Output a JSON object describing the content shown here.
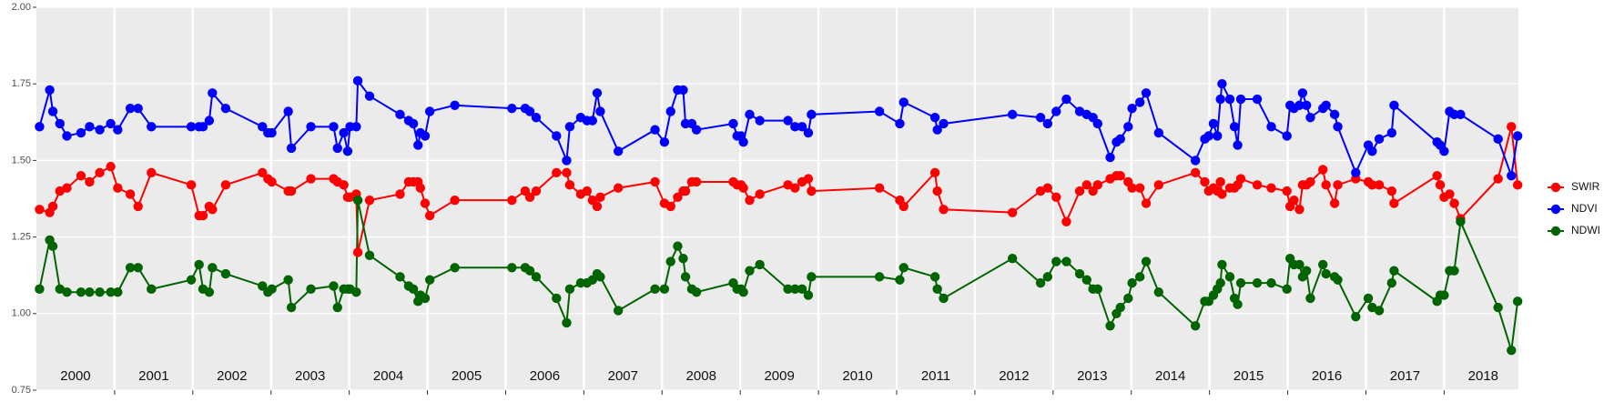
{
  "chart_data": {
    "type": "line",
    "x": [
      2000.04,
      2000.17,
      2000.21,
      2000.3,
      2000.39,
      2000.57,
      2000.68,
      2000.81,
      2000.95,
      2001.04,
      2001.2,
      2001.3,
      2001.47,
      2001.98,
      2002.08,
      2002.13,
      2002.21,
      2002.25,
      2002.42,
      2002.89,
      2002.96,
      2003.01,
      2003.22,
      2003.26,
      2003.51,
      2003.8,
      2003.85,
      2003.93,
      2003.98,
      2004.01,
      2004.09,
      2004.11,
      2004.26,
      2004.65,
      2004.76,
      2004.82,
      2004.88,
      2004.91,
      2004.97,
      2005.03,
      2005.35,
      2006.08,
      2006.25,
      2006.31,
      2006.39,
      2006.65,
      2006.78,
      2006.82,
      2006.96,
      2007.04,
      2007.11,
      2007.17,
      2007.21,
      2007.44,
      2007.91,
      2008.03,
      2008.11,
      2008.2,
      2008.27,
      2008.3,
      2008.38,
      2008.44,
      2008.91,
      2008.96,
      2009.01,
      2009.04,
      2009.12,
      2009.25,
      2009.61,
      2009.7,
      2009.79,
      2009.87,
      2009.91,
      2010.78,
      2011.04,
      2011.09,
      2011.49,
      2011.52,
      2011.6,
      2012.48,
      2012.84,
      2012.93,
      2013.04,
      2013.17,
      2013.34,
      2013.43,
      2013.51,
      2013.57,
      2013.73,
      2013.81,
      2013.86,
      2013.96,
      2014.01,
      2014.11,
      2014.19,
      2014.35,
      2014.82,
      2014.94,
      2014.99,
      2015.05,
      2015.1,
      2015.14,
      2015.16,
      2015.26,
      2015.32,
      2015.36,
      2015.4,
      2015.61,
      2015.79,
      2015.99,
      2016.03,
      2016.08,
      2016.15,
      2016.19,
      2016.24,
      2016.29,
      2016.45,
      2016.49,
      2016.6,
      2016.64,
      2016.87,
      2017.03,
      2017.08,
      2017.17,
      2017.33,
      2017.36,
      2017.91,
      2017.95,
      2018.0,
      2018.07,
      2018.13,
      2018.21,
      2018.69,
      2018.86,
      2018.94
    ],
    "series": [
      {
        "name": "SWIR",
        "color": "#ff0000",
        "values": [
          1.34,
          1.33,
          1.35,
          1.4,
          1.41,
          1.45,
          1.43,
          1.46,
          1.48,
          1.41,
          1.39,
          1.35,
          1.46,
          1.42,
          1.32,
          1.32,
          1.35,
          1.34,
          1.42,
          1.46,
          1.44,
          1.43,
          1.4,
          1.4,
          1.44,
          1.44,
          1.43,
          1.42,
          1.38,
          1.38,
          1.39,
          1.2,
          1.37,
          1.39,
          1.43,
          1.43,
          1.43,
          1.41,
          1.36,
          1.32,
          1.37,
          1.37,
          1.4,
          1.38,
          1.4,
          1.46,
          1.46,
          1.42,
          1.39,
          1.4,
          1.37,
          1.35,
          1.38,
          1.41,
          1.43,
          1.36,
          1.35,
          1.38,
          1.4,
          1.4,
          1.43,
          1.43,
          1.43,
          1.42,
          1.42,
          1.41,
          1.37,
          1.39,
          1.42,
          1.41,
          1.43,
          1.44,
          1.4,
          1.41,
          1.37,
          1.35,
          1.46,
          1.4,
          1.34,
          1.33,
          1.4,
          1.41,
          1.38,
          1.3,
          1.4,
          1.42,
          1.4,
          1.42,
          1.44,
          1.45,
          1.45,
          1.43,
          1.41,
          1.41,
          1.36,
          1.42,
          1.46,
          1.43,
          1.4,
          1.41,
          1.4,
          1.43,
          1.39,
          1.41,
          1.41,
          1.42,
          1.44,
          1.42,
          1.41,
          1.4,
          1.35,
          1.37,
          1.34,
          1.42,
          1.42,
          1.43,
          1.47,
          1.42,
          1.36,
          1.42,
          1.44,
          1.43,
          1.42,
          1.42,
          1.4,
          1.36,
          1.45,
          1.42,
          1.38,
          1.39,
          1.36,
          1.31,
          1.44,
          1.61,
          1.42
        ]
      },
      {
        "name": "NDVI",
        "color": "#0000ff",
        "values": [
          1.61,
          1.73,
          1.66,
          1.62,
          1.58,
          1.59,
          1.61,
          1.6,
          1.62,
          1.6,
          1.67,
          1.67,
          1.61,
          1.61,
          1.61,
          1.61,
          1.63,
          1.72,
          1.67,
          1.61,
          1.59,
          1.59,
          1.66,
          1.54,
          1.61,
          1.61,
          1.54,
          1.59,
          1.53,
          1.61,
          1.61,
          1.76,
          1.71,
          1.65,
          1.63,
          1.62,
          1.55,
          1.59,
          1.58,
          1.66,
          1.68,
          1.67,
          1.67,
          1.66,
          1.64,
          1.58,
          1.5,
          1.61,
          1.64,
          1.63,
          1.63,
          1.72,
          1.66,
          1.53,
          1.6,
          1.56,
          1.66,
          1.73,
          1.73,
          1.62,
          1.62,
          1.6,
          1.62,
          1.58,
          1.58,
          1.56,
          1.65,
          1.63,
          1.63,
          1.61,
          1.61,
          1.59,
          1.65,
          1.66,
          1.62,
          1.69,
          1.64,
          1.6,
          1.62,
          1.65,
          1.64,
          1.62,
          1.66,
          1.7,
          1.66,
          1.65,
          1.64,
          1.62,
          1.51,
          1.56,
          1.57,
          1.61,
          1.67,
          1.69,
          1.72,
          1.59,
          1.5,
          1.57,
          1.58,
          1.62,
          1.58,
          1.7,
          1.75,
          1.7,
          1.61,
          1.55,
          1.7,
          1.7,
          1.61,
          1.58,
          1.68,
          1.67,
          1.68,
          1.72,
          1.68,
          1.64,
          1.67,
          1.68,
          1.65,
          1.61,
          1.46,
          1.55,
          1.53,
          1.57,
          1.59,
          1.68,
          1.56,
          1.55,
          1.53,
          1.66,
          1.65,
          1.65,
          1.57,
          1.45,
          1.58
        ]
      },
      {
        "name": "NDWI",
        "color": "#006400",
        "values": [
          1.08,
          1.24,
          1.22,
          1.08,
          1.07,
          1.07,
          1.07,
          1.07,
          1.07,
          1.07,
          1.15,
          1.15,
          1.08,
          1.11,
          1.16,
          1.08,
          1.07,
          1.15,
          1.13,
          1.09,
          1.07,
          1.08,
          1.11,
          1.02,
          1.08,
          1.09,
          1.02,
          1.08,
          1.08,
          1.08,
          1.07,
          1.37,
          1.19,
          1.12,
          1.09,
          1.08,
          1.04,
          1.06,
          1.05,
          1.11,
          1.15,
          1.15,
          1.15,
          1.14,
          1.12,
          1.05,
          0.97,
          1.08,
          1.1,
          1.1,
          1.11,
          1.13,
          1.12,
          1.01,
          1.08,
          1.08,
          1.17,
          1.22,
          1.18,
          1.12,
          1.08,
          1.07,
          1.1,
          1.08,
          1.08,
          1.07,
          1.14,
          1.16,
          1.08,
          1.08,
          1.08,
          1.06,
          1.12,
          1.12,
          1.11,
          1.15,
          1.12,
          1.08,
          1.05,
          1.18,
          1.1,
          1.12,
          1.17,
          1.17,
          1.13,
          1.11,
          1.08,
          1.08,
          0.96,
          1.0,
          1.02,
          1.05,
          1.1,
          1.12,
          1.17,
          1.07,
          0.96,
          1.04,
          1.04,
          1.06,
          1.08,
          1.1,
          1.16,
          1.12,
          1.05,
          1.03,
          1.1,
          1.1,
          1.1,
          1.08,
          1.18,
          1.16,
          1.16,
          1.12,
          1.14,
          1.05,
          1.16,
          1.13,
          1.12,
          1.11,
          0.99,
          1.05,
          1.02,
          1.01,
          1.1,
          1.14,
          1.04,
          1.06,
          1.06,
          1.14,
          1.14,
          1.3,
          1.02,
          0.88,
          1.04
        ]
      }
    ],
    "xlim": [
      2000,
      2018.95
    ],
    "xticks": [
      {
        "value": 2000.5,
        "label": "2000"
      },
      {
        "value": 2001.5,
        "label": "2001"
      },
      {
        "value": 2002.5,
        "label": "2002"
      },
      {
        "value": 2003.5,
        "label": "2003"
      },
      {
        "value": 2004.5,
        "label": "2004"
      },
      {
        "value": 2005.5,
        "label": "2005"
      },
      {
        "value": 2006.5,
        "label": "2006"
      },
      {
        "value": 2007.5,
        "label": "2007"
      },
      {
        "value": 2008.5,
        "label": "2008"
      },
      {
        "value": 2009.5,
        "label": "2009"
      },
      {
        "value": 2010.5,
        "label": "2010"
      },
      {
        "value": 2011.5,
        "label": "2011"
      },
      {
        "value": 2012.5,
        "label": "2012"
      },
      {
        "value": 2013.5,
        "label": "2013"
      },
      {
        "value": 2014.5,
        "label": "2014"
      },
      {
        "value": 2015.5,
        "label": "2015"
      },
      {
        "value": 2016.5,
        "label": "2016"
      },
      {
        "value": 2017.5,
        "label": "2017"
      },
      {
        "value": 2018.5,
        "label": "2018"
      }
    ],
    "xbreaks": [
      2001,
      2002,
      2003,
      2004,
      2005,
      2006,
      2007,
      2008,
      2009,
      2010,
      2011,
      2012,
      2013,
      2014,
      2015,
      2016,
      2017,
      2018
    ],
    "ylim": [
      0.75,
      2.0
    ],
    "yticks": [
      0.75,
      {
        "value": 1,
        "label": "1.00"
      },
      1.25,
      {
        "value": 1.5,
        "label": "1.50"
      },
      1.75,
      {
        "value": 2,
        "label": "2.00"
      }
    ],
    "grid": true,
    "legend": "right"
  }
}
